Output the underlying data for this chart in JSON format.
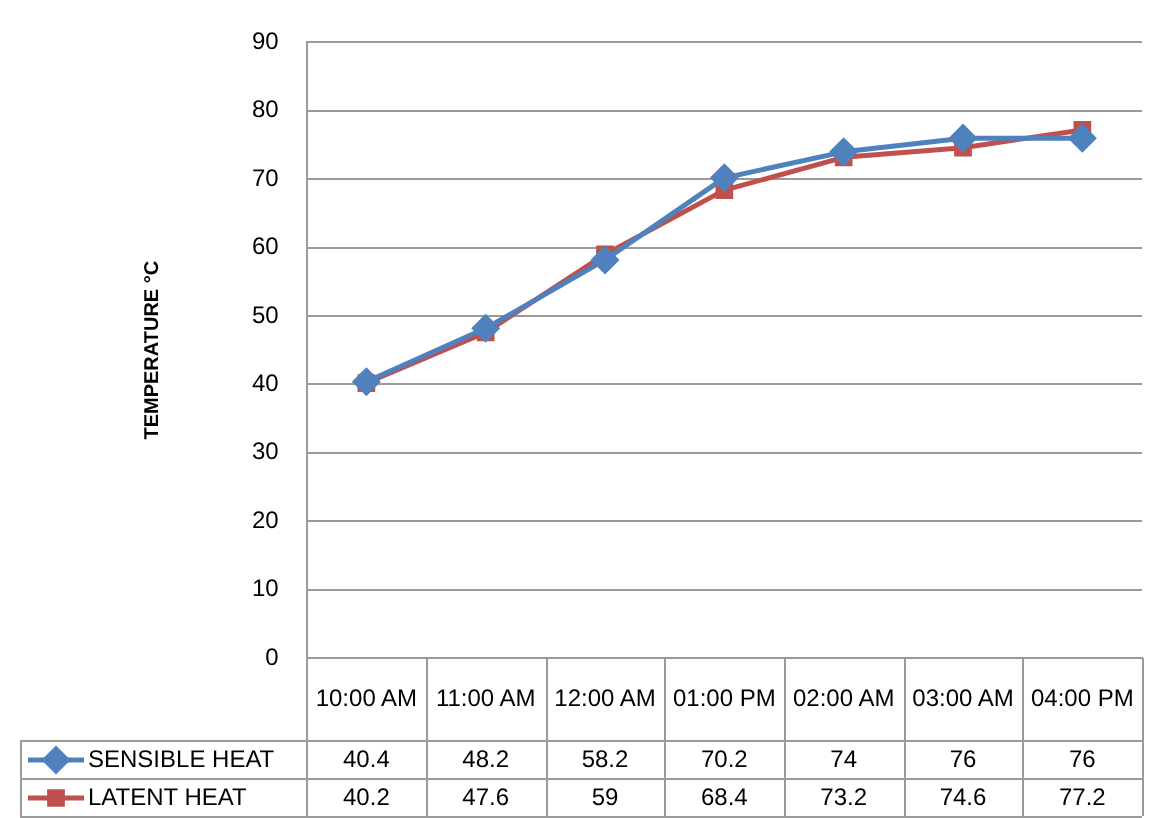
{
  "chart_data": {
    "type": "line",
    "ylabel": "TEMPERATURE °C",
    "categories": [
      "10:00 AM",
      "11:00 AM",
      "12:00 AM",
      "01:00 PM",
      "02:00 AM",
      "03:00 AM",
      "04:00 PM"
    ],
    "series": [
      {
        "name": "SENSIBLE HEAT",
        "color": "#4f81bd",
        "marker": "diamond",
        "values": [
          40.4,
          48.2,
          58.2,
          70.2,
          74,
          76,
          76
        ]
      },
      {
        "name": "LATENT HEAT",
        "color": "#c0504d",
        "marker": "square",
        "values": [
          40.2,
          47.6,
          59,
          68.4,
          73.2,
          74.6,
          77.2
        ]
      }
    ],
    "ylim": [
      0,
      90
    ],
    "yticks": [
      0,
      10,
      20,
      30,
      40,
      50,
      60,
      70,
      80,
      90
    ],
    "grid": "y",
    "legend": "bottom",
    "data_labels": true
  }
}
